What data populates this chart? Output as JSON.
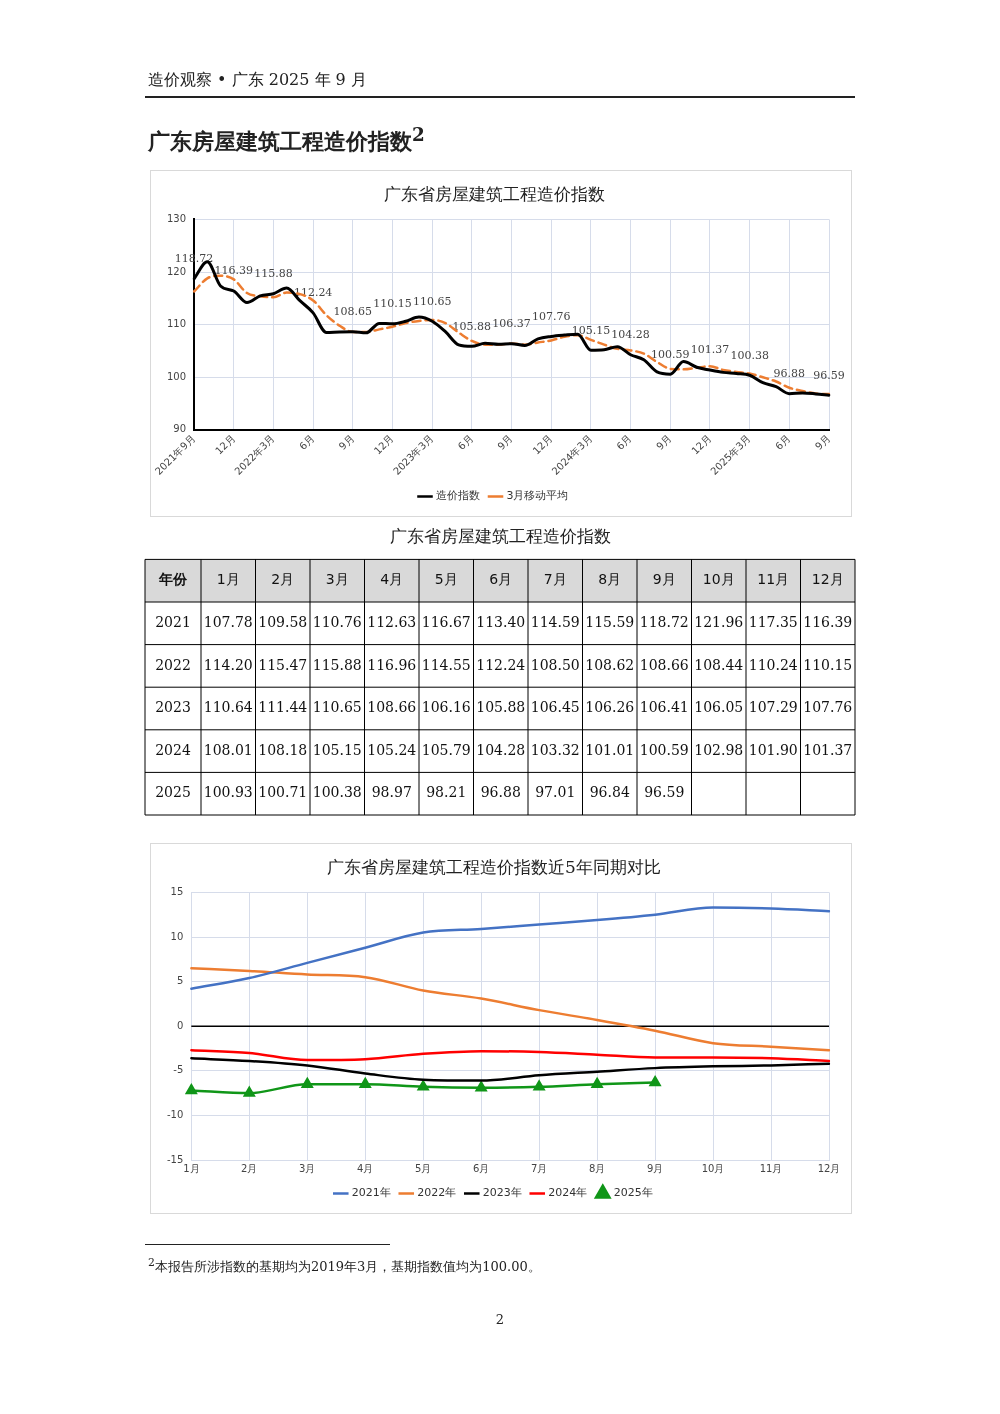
{
  "chart_data": [
    {
      "type": "line",
      "title": "广东省房屋建筑工程造价指数",
      "categories": [
        "2021年9月",
        null,
        null,
        "12月",
        null,
        null,
        "2022年3月",
        null,
        null,
        "6月",
        null,
        null,
        "9月",
        null,
        null,
        "12月",
        null,
        null,
        "2023年3月",
        null,
        null,
        "6月",
        null,
        null,
        "9月",
        null,
        null,
        "12月",
        null,
        null,
        "2024年3月",
        null,
        null,
        "6月",
        null,
        null,
        "9月",
        null,
        null,
        "12月",
        null,
        null,
        "2025年3月",
        null,
        null,
        "6月",
        null,
        null,
        "9月"
      ],
      "series": [
        {
          "name": "造价指数",
          "color": "#000000",
          "values": [
            118.72,
            121.96,
            117.35,
            116.39,
            114.2,
            115.47,
            115.88,
            116.96,
            114.55,
            112.24,
            108.5,
            108.62,
            108.65,
            108.44,
            110.24,
            110.15,
            110.64,
            111.44,
            110.65,
            108.66,
            106.16,
            105.88,
            106.45,
            106.26,
            106.37,
            106.05,
            107.29,
            107.76,
            108.01,
            108.18,
            105.15,
            105.24,
            105.79,
            104.28,
            103.32,
            101.01,
            100.59,
            102.98,
            101.9,
            101.37,
            100.93,
            100.71,
            100.38,
            98.97,
            98.21,
            96.88,
            97.01,
            96.84,
            96.59
          ],
          "value_labels": [
            "118.72",
            null,
            null,
            "116.39",
            null,
            null,
            "115.88",
            null,
            null,
            "112.24",
            null,
            null,
            "108.65",
            null,
            null,
            "110.15",
            null,
            null,
            "110.65",
            null,
            null,
            "105.88",
            null,
            null,
            "106.37",
            null,
            null,
            "107.76",
            null,
            null,
            "105.15",
            null,
            null,
            "104.28",
            null,
            null,
            "100.59",
            null,
            null,
            "101.37",
            null,
            null,
            "100.38",
            null,
            null,
            "96.88",
            null,
            null,
            "96.59"
          ]
        },
        {
          "name": "3月移动平均",
          "color": "#ed7d31",
          "line_style": "dashed",
          "values": [
            116.3,
            118.8,
            119.3,
            118.6,
            116.0,
            115.4,
            115.2,
            116.1,
            115.8,
            114.6,
            111.8,
            109.8,
            108.6,
            108.6,
            109.1,
            109.6,
            110.3,
            110.7,
            110.9,
            110.3,
            108.5,
            106.9,
            106.2,
            106.2,
            106.4,
            106.2,
            106.6,
            107.0,
            107.7,
            108.0,
            107.1,
            106.2,
            105.4,
            105.1,
            104.5,
            102.9,
            101.6,
            101.5,
            101.8,
            102.1,
            101.4,
            101.0,
            100.7,
            100.0,
            99.2,
            98.0,
            97.4,
            96.9,
            96.8
          ]
        }
      ],
      "ylim": [
        90,
        130
      ],
      "yticks": [
        90,
        100,
        110,
        120,
        130
      ],
      "grid": true,
      "legend": "bottom",
      "annotations": [
        "造价观察 • 广东 2025 年 9 月",
        "广东房屋建筑工程造价指数$^{2}$",
        "$^{2}$本报告所涉指数的基期均为2019年3月，基期指数值均为100.00。",
        "2"
      ]
    },
    {
      "type": "heatmap",
      "title": "广东省房屋建筑工程造价指数",
      "ylabel": "年份",
      "categories": [
        "1月",
        "2月",
        "3月",
        "4月",
        "5月",
        "6月",
        "7月",
        "8月",
        "9月",
        "10月",
        "11月",
        "12月"
      ],
      "y_categories": [
        "2021",
        "2022",
        "2023",
        "2024",
        "2025"
      ],
      "cells": [
        [
          107.78,
          109.58,
          110.76,
          112.63,
          116.67,
          113.4,
          114.59,
          115.59,
          118.72,
          121.96,
          117.35,
          116.39
        ],
        [
          114.2,
          115.47,
          115.88,
          116.96,
          114.55,
          112.24,
          108.5,
          108.62,
          108.66,
          108.44,
          110.24,
          110.15
        ],
        [
          110.64,
          111.44,
          110.65,
          108.66,
          106.16,
          105.88,
          106.45,
          106.26,
          106.41,
          106.05,
          107.29,
          107.76
        ],
        [
          108.01,
          108.18,
          105.15,
          105.24,
          105.79,
          104.28,
          103.32,
          101.01,
          100.59,
          102.98,
          101.9,
          101.37
        ],
        [
          100.93,
          100.71,
          100.38,
          98.97,
          98.21,
          96.88,
          97.01,
          96.84,
          96.59,
          null,
          null,
          null
        ]
      ],
      "cell_labels": [
        [
          "107.78",
          "109.58",
          "110.76",
          "112.63",
          "116.67",
          "113.40",
          "114.59",
          "115.59",
          "118.72",
          "121.96",
          "117.35",
          "116.39"
        ],
        [
          "114.20",
          "115.47",
          "115.88",
          "116.96",
          "114.55",
          "112.24",
          "108.50",
          "108.62",
          "108.66",
          "108.44",
          "110.24",
          "110.15"
        ],
        [
          "110.64",
          "111.44",
          "110.65",
          "108.66",
          "106.16",
          "105.88",
          "106.45",
          "106.26",
          "106.41",
          "106.05",
          "107.29",
          "107.76"
        ],
        [
          "108.01",
          "108.18",
          "105.15",
          "105.24",
          "105.79",
          "104.28",
          "103.32",
          "101.01",
          "100.59",
          "102.98",
          "101.90",
          "101.37"
        ],
        [
          "100.93",
          "100.71",
          "100.38",
          "98.97",
          "98.21",
          "96.88",
          "97.01",
          "96.84",
          "96.59",
          null,
          null,
          null
        ]
      ],
      "data_labels": true
    },
    {
      "type": "line",
      "title": "广东省房屋建筑工程造价指数近5年同期对比",
      "categories": [
        "1月",
        "2月",
        "3月",
        "4月",
        "5月",
        "6月",
        "7月",
        "8月",
        "9月",
        "10月",
        "11月",
        "12月"
      ],
      "series": [
        {
          "name": "2021年",
          "color": "#4472c4",
          "values": [
            4.2,
            5.4,
            7.1,
            8.8,
            10.5,
            10.9,
            11.4,
            11.9,
            12.5,
            13.3,
            13.2,
            12.9
          ]
        },
        {
          "name": "2022年",
          "color": "#ed7d31",
          "values": [
            6.5,
            6.2,
            5.8,
            5.5,
            4.0,
            3.1,
            1.8,
            0.7,
            -0.5,
            -1.9,
            -2.3,
            -2.7
          ]
        },
        {
          "name": "2023年",
          "color": "#000000",
          "values": [
            -3.6,
            -3.9,
            -4.4,
            -5.3,
            -6.0,
            -6.1,
            -5.5,
            -5.1,
            -4.7,
            -4.5,
            -4.4,
            -4.2
          ]
        },
        {
          "name": "2024年",
          "color": "#ff0000",
          "values": [
            -2.7,
            -3.0,
            -3.8,
            -3.7,
            -3.1,
            -2.8,
            -2.9,
            -3.2,
            -3.5,
            -3.5,
            -3.6,
            -3.9
          ]
        },
        {
          "name": "2025年",
          "color": "#109618",
          "marker": "triangle",
          "values": [
            -7.2,
            -7.5,
            -6.5,
            -6.5,
            -6.8,
            -6.9,
            -6.8,
            -6.5,
            -6.3,
            null,
            null,
            null
          ]
        }
      ],
      "ylim": [
        -15,
        15
      ],
      "yticks": [
        -15,
        -10,
        -5,
        0,
        5,
        10,
        15
      ],
      "grid": true,
      "legend": "bottom",
      "ref_lines": [
        {
          "axis": "y",
          "value": 0,
          "color": "#000000"
        }
      ]
    }
  ]
}
